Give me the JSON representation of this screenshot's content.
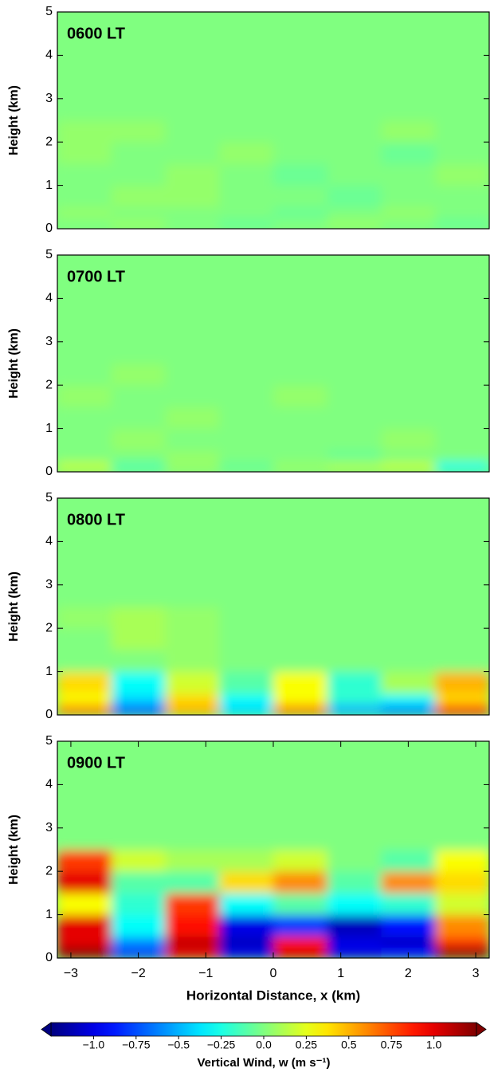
{
  "chart_data": [
    {
      "type": "heatmap",
      "label": "0600 LT",
      "ylabel": "Height (km)",
      "xlim": [
        -3.2,
        3.2
      ],
      "ylim": [
        0,
        5
      ],
      "yticks": [
        0,
        1,
        2,
        3,
        4,
        5
      ],
      "x_edges": [
        -3.2,
        -2.4,
        -1.6,
        -0.8,
        0,
        0.8,
        1.6,
        2.4,
        3.2
      ],
      "y_edges": [
        0,
        0.25,
        0.5,
        1,
        1.5,
        2,
        2.5,
        5
      ],
      "values": [
        [
          0,
          0.05,
          0,
          -0.05,
          0,
          0.05,
          0,
          -0.05
        ],
        [
          0.05,
          0,
          0,
          0,
          -0.05,
          0,
          0.05,
          0
        ],
        [
          0,
          0.05,
          0.05,
          0,
          0,
          -0.05,
          0,
          0
        ],
        [
          0,
          0,
          0.05,
          0,
          -0.05,
          0,
          0,
          0.05
        ],
        [
          0.05,
          0,
          0,
          0.05,
          0,
          0,
          -0.05,
          0
        ],
        [
          0.05,
          0.05,
          0,
          0,
          0,
          0,
          0.05,
          0
        ],
        [
          0,
          0,
          0,
          0,
          0,
          0,
          0,
          0
        ]
      ]
    },
    {
      "type": "heatmap",
      "label": "0700 LT",
      "ylabel": "Height (km)",
      "xlim": [
        -3.2,
        3.2
      ],
      "ylim": [
        0,
        5
      ],
      "yticks": [
        0,
        1,
        2,
        3,
        4,
        5
      ],
      "x_edges": [
        -3.2,
        -2.4,
        -1.6,
        -0.8,
        0,
        0.8,
        1.6,
        2.4,
        3.2
      ],
      "y_edges": [
        0,
        0.25,
        0.5,
        1,
        1.5,
        2,
        2.5,
        5
      ],
      "values": [
        [
          0.15,
          -0.1,
          0.05,
          -0.05,
          0.05,
          0.1,
          0.15,
          -0.25
        ],
        [
          0,
          0,
          0.05,
          0,
          0,
          -0.05,
          0,
          0
        ],
        [
          0,
          0.05,
          0,
          0,
          0,
          0,
          0.05,
          0
        ],
        [
          0,
          0,
          0.05,
          0,
          0,
          0,
          0,
          0
        ],
        [
          0.05,
          0,
          0,
          0,
          0.05,
          0,
          0,
          0
        ],
        [
          0,
          0.05,
          0,
          0,
          0,
          0,
          0,
          0
        ],
        [
          0,
          0,
          0,
          0,
          0,
          0,
          0,
          0
        ]
      ]
    },
    {
      "type": "heatmap",
      "label": "0800 LT",
      "ylabel": "Height (km)",
      "xlim": [
        -3.2,
        3.2
      ],
      "ylim": [
        0,
        5
      ],
      "yticks": [
        0,
        1,
        2,
        3,
        4,
        5
      ],
      "x_edges": [
        -3.2,
        -2.4,
        -1.6,
        -0.8,
        0,
        0.8,
        1.6,
        2.4,
        3.2
      ],
      "y_edges": [
        0,
        0.25,
        0.5,
        1,
        1.5,
        2,
        2.5,
        5
      ],
      "values": [
        [
          0.6,
          -0.7,
          0.5,
          -0.4,
          0.6,
          -0.5,
          -0.6,
          0.8
        ],
        [
          0.3,
          -0.4,
          0.4,
          -0.3,
          0.3,
          -0.2,
          -0.3,
          0.4
        ],
        [
          0.4,
          -0.3,
          0.2,
          -0.1,
          0.3,
          -0.2,
          0.1,
          0.5
        ],
        [
          0,
          0,
          0.05,
          0,
          0,
          0,
          0,
          0
        ],
        [
          0,
          0.1,
          0.05,
          0,
          0,
          0,
          0,
          0
        ],
        [
          0.05,
          0.1,
          0.05,
          0,
          0,
          0,
          0,
          0
        ],
        [
          0,
          0,
          0,
          0,
          0,
          0,
          0,
          0
        ]
      ]
    },
    {
      "type": "heatmap",
      "label": "0900 LT",
      "ylabel": "Height (km)",
      "xlabel": "Horizontal Distance, x (km)",
      "xlim": [
        -3.2,
        3.2
      ],
      "ylim": [
        0,
        5
      ],
      "yticks": [
        0,
        1,
        2,
        3,
        4,
        5
      ],
      "xticks": [
        {
          "value": -3,
          "label": "−3"
        },
        {
          "value": -2,
          "label": "−2"
        },
        {
          "value": -1,
          "label": "−1"
        },
        0,
        1,
        2,
        3
      ],
      "x_edges": [
        -3.2,
        -2.4,
        -1.6,
        -0.8,
        0,
        0.8,
        1.6,
        2.4,
        3.2
      ],
      "y_edges": [
        0,
        0.25,
        0.5,
        1,
        1.5,
        2,
        2.5,
        5
      ],
      "values": [
        [
          1.2,
          -0.8,
          1.0,
          -1.0,
          1.0,
          -1.0,
          -0.9,
          1.2
        ],
        [
          1.0,
          -0.6,
          1.1,
          -1.1,
          0.9,
          -1.0,
          -1.1,
          0.8
        ],
        [
          1.0,
          -0.3,
          0.9,
          -1.0,
          -0.8,
          -1.1,
          -0.9,
          0.6
        ],
        [
          0.3,
          -0.2,
          0.8,
          -0.3,
          -0.1,
          -0.3,
          -0.2,
          0.2
        ],
        [
          1.0,
          -0.1,
          -0.1,
          0.4,
          0.6,
          -0.1,
          0.6,
          0.4
        ],
        [
          0.8,
          0.2,
          0.1,
          0.1,
          0.2,
          0,
          -0.1,
          0.3
        ],
        [
          0,
          0,
          0,
          0,
          0,
          0,
          0,
          0
        ]
      ]
    }
  ],
  "colorbar": {
    "label": "Vertical Wind, w (m s⁻¹)",
    "colormap": "jet",
    "lim": [
      -1.25,
      1.25
    ],
    "ticks": [
      {
        "value": -1.0,
        "label": "−1.0"
      },
      {
        "value": -0.75,
        "label": "−0.75"
      },
      {
        "value": -0.5,
        "label": "−0.5"
      },
      {
        "value": -0.25,
        "label": "−0.25"
      },
      {
        "value": 0,
        "label": "0.0"
      },
      0.25,
      0.5,
      0.75,
      {
        "value": 1.0,
        "label": "1.0"
      }
    ]
  }
}
